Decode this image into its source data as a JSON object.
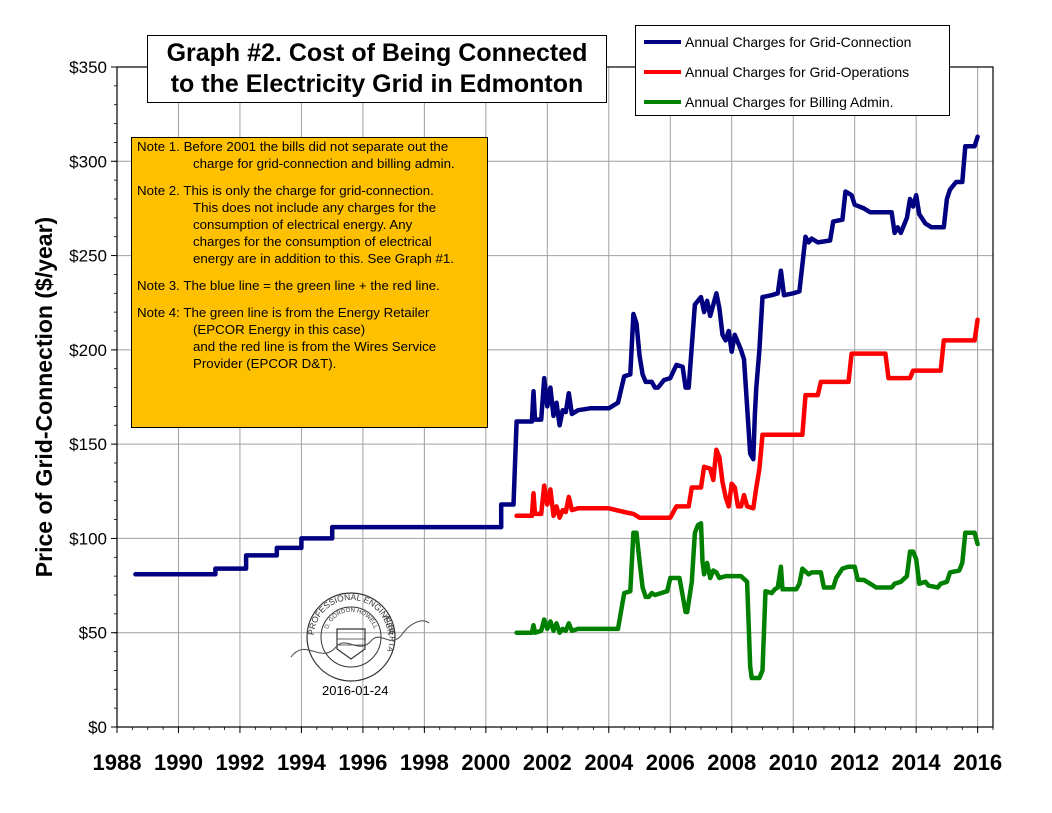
{
  "chart_data": {
    "type": "line",
    "title": [
      "Graph #2. Cost of Being Connected",
      "to the Electricity Grid in Edmonton"
    ],
    "xlabel": "",
    "ylabel": "Price of Grid-Connection ($/year)",
    "xlim": [
      1988,
      2016.5
    ],
    "ylim": [
      0,
      350
    ],
    "x_ticks": [
      1988,
      1990,
      1992,
      1994,
      1996,
      1998,
      2000,
      2002,
      2004,
      2006,
      2008,
      2010,
      2012,
      2014,
      2016
    ],
    "y_ticks": [
      0,
      50,
      100,
      150,
      200,
      250,
      300,
      350
    ],
    "y_tick_labels": [
      "$0",
      "$50",
      "$100",
      "$150",
      "$200",
      "$250",
      "$300",
      "$350"
    ],
    "grid": true,
    "legend_position": "top-right",
    "series": [
      {
        "name": "Annual Charges for Grid-Connection",
        "color": "#000080",
        "points": [
          [
            1988.6,
            81
          ],
          [
            1991.2,
            81
          ],
          [
            1991.2,
            84
          ],
          [
            1992.2,
            84
          ],
          [
            1992.2,
            91
          ],
          [
            1993.2,
            91
          ],
          [
            1993.2,
            95
          ],
          [
            1994.0,
            95
          ],
          [
            1994.0,
            100
          ],
          [
            1995.0,
            100
          ],
          [
            1995.0,
            106
          ],
          [
            2000.5,
            106
          ],
          [
            2000.5,
            118
          ],
          [
            2000.9,
            118
          ],
          [
            2001.0,
            162
          ],
          [
            2001.5,
            162
          ],
          [
            2001.55,
            178
          ],
          [
            2001.6,
            163
          ],
          [
            2001.8,
            163
          ],
          [
            2001.9,
            185
          ],
          [
            2002.0,
            170
          ],
          [
            2002.1,
            180
          ],
          [
            2002.2,
            165
          ],
          [
            2002.3,
            172
          ],
          [
            2002.4,
            160
          ],
          [
            2002.5,
            168
          ],
          [
            2002.6,
            167
          ],
          [
            2002.7,
            177
          ],
          [
            2002.8,
            166
          ],
          [
            2003.0,
            168
          ],
          [
            2003.4,
            169
          ],
          [
            2004.0,
            169
          ],
          [
            2004.3,
            172
          ],
          [
            2004.5,
            186
          ],
          [
            2004.7,
            187
          ],
          [
            2004.8,
            219
          ],
          [
            2004.9,
            214
          ],
          [
            2005.0,
            197
          ],
          [
            2005.1,
            187
          ],
          [
            2005.2,
            183
          ],
          [
            2005.4,
            183
          ],
          [
            2005.5,
            180
          ],
          [
            2005.6,
            180
          ],
          [
            2005.8,
            184
          ],
          [
            2006.0,
            185
          ],
          [
            2006.2,
            192
          ],
          [
            2006.4,
            191
          ],
          [
            2006.5,
            180
          ],
          [
            2006.6,
            180
          ],
          [
            2006.8,
            224
          ],
          [
            2007.0,
            228
          ],
          [
            2007.1,
            220
          ],
          [
            2007.2,
            226
          ],
          [
            2007.3,
            218
          ],
          [
            2007.5,
            230
          ],
          [
            2007.6,
            222
          ],
          [
            2007.7,
            208
          ],
          [
            2007.8,
            205
          ],
          [
            2007.9,
            210
          ],
          [
            2008.0,
            199
          ],
          [
            2008.1,
            208
          ],
          [
            2008.3,
            200
          ],
          [
            2008.4,
            195
          ],
          [
            2008.5,
            170
          ],
          [
            2008.6,
            145
          ],
          [
            2008.7,
            142
          ],
          [
            2008.75,
            165
          ],
          [
            2008.8,
            180
          ],
          [
            2008.9,
            200
          ],
          [
            2009.0,
            228
          ],
          [
            2009.3,
            229
          ],
          [
            2009.5,
            230
          ],
          [
            2009.6,
            242
          ],
          [
            2009.7,
            229
          ],
          [
            2010.0,
            230
          ],
          [
            2010.2,
            231
          ],
          [
            2010.4,
            260
          ],
          [
            2010.5,
            257
          ],
          [
            2010.6,
            259
          ],
          [
            2010.8,
            257
          ],
          [
            2011.2,
            258
          ],
          [
            2011.3,
            268
          ],
          [
            2011.6,
            269
          ],
          [
            2011.7,
            284
          ],
          [
            2011.9,
            282
          ],
          [
            2012.0,
            277
          ],
          [
            2012.3,
            275
          ],
          [
            2012.5,
            273
          ],
          [
            2013.2,
            273
          ],
          [
            2013.3,
            262
          ],
          [
            2013.4,
            265
          ],
          [
            2013.5,
            262
          ],
          [
            2013.7,
            270
          ],
          [
            2013.8,
            280
          ],
          [
            2013.9,
            276
          ],
          [
            2014.0,
            282
          ],
          [
            2014.1,
            272
          ],
          [
            2014.3,
            267
          ],
          [
            2014.5,
            265
          ],
          [
            2014.9,
            265
          ],
          [
            2015.0,
            280
          ],
          [
            2015.1,
            285
          ],
          [
            2015.3,
            289
          ],
          [
            2015.5,
            289
          ],
          [
            2015.6,
            308
          ],
          [
            2015.9,
            308
          ],
          [
            2016.0,
            313
          ]
        ]
      },
      {
        "name": "Annual Charges for Grid-Operations",
        "color": "#ff0000",
        "points": [
          [
            2001.0,
            112
          ],
          [
            2001.5,
            112
          ],
          [
            2001.55,
            124
          ],
          [
            2001.6,
            113
          ],
          [
            2001.8,
            113
          ],
          [
            2001.9,
            128
          ],
          [
            2002.0,
            118
          ],
          [
            2002.1,
            126
          ],
          [
            2002.2,
            112
          ],
          [
            2002.3,
            117
          ],
          [
            2002.4,
            111
          ],
          [
            2002.5,
            115
          ],
          [
            2002.6,
            114
          ],
          [
            2002.7,
            122
          ],
          [
            2002.8,
            115
          ],
          [
            2003.0,
            116
          ],
          [
            2004.0,
            116
          ],
          [
            2004.5,
            114
          ],
          [
            2004.8,
            113
          ],
          [
            2005.0,
            111
          ],
          [
            2006.0,
            111
          ],
          [
            2006.2,
            117
          ],
          [
            2006.6,
            117
          ],
          [
            2006.7,
            127
          ],
          [
            2007.0,
            127
          ],
          [
            2007.1,
            138
          ],
          [
            2007.3,
            137
          ],
          [
            2007.4,
            131
          ],
          [
            2007.5,
            147
          ],
          [
            2007.6,
            143
          ],
          [
            2007.7,
            130
          ],
          [
            2007.8,
            122
          ],
          [
            2007.9,
            117
          ],
          [
            2008.0,
            129
          ],
          [
            2008.1,
            127
          ],
          [
            2008.2,
            117
          ],
          [
            2008.3,
            117
          ],
          [
            2008.4,
            123
          ],
          [
            2008.5,
            117
          ],
          [
            2008.7,
            116
          ],
          [
            2008.8,
            127
          ],
          [
            2008.9,
            137
          ],
          [
            2009.0,
            155
          ],
          [
            2010.3,
            155
          ],
          [
            2010.4,
            176
          ],
          [
            2010.8,
            176
          ],
          [
            2010.9,
            183
          ],
          [
            2011.8,
            183
          ],
          [
            2011.9,
            198
          ],
          [
            2013.0,
            198
          ],
          [
            2013.1,
            185
          ],
          [
            2013.8,
            185
          ],
          [
            2013.9,
            189
          ],
          [
            2014.8,
            189
          ],
          [
            2014.9,
            205
          ],
          [
            2015.9,
            205
          ],
          [
            2016.0,
            216
          ]
        ]
      },
      {
        "name": "Annual Charges for Billing Admin.",
        "color": "#008000",
        "points": [
          [
            2001.0,
            50
          ],
          [
            2001.5,
            50
          ],
          [
            2001.55,
            54
          ],
          [
            2001.6,
            50
          ],
          [
            2001.8,
            51
          ],
          [
            2001.9,
            57
          ],
          [
            2002.0,
            52
          ],
          [
            2002.1,
            56
          ],
          [
            2002.2,
            51
          ],
          [
            2002.3,
            55
          ],
          [
            2002.4,
            50
          ],
          [
            2002.5,
            52
          ],
          [
            2002.6,
            51
          ],
          [
            2002.7,
            55
          ],
          [
            2002.8,
            51
          ],
          [
            2003.0,
            52
          ],
          [
            2004.3,
            52
          ],
          [
            2004.5,
            71
          ],
          [
            2004.7,
            72
          ],
          [
            2004.8,
            103
          ],
          [
            2004.9,
            103
          ],
          [
            2005.0,
            88
          ],
          [
            2005.1,
            74
          ],
          [
            2005.2,
            69
          ],
          [
            2005.3,
            69
          ],
          [
            2005.4,
            71
          ],
          [
            2005.5,
            70
          ],
          [
            2005.7,
            71
          ],
          [
            2005.9,
            72
          ],
          [
            2006.0,
            79
          ],
          [
            2006.3,
            79
          ],
          [
            2006.5,
            61
          ],
          [
            2006.55,
            61
          ],
          [
            2006.7,
            77
          ],
          [
            2006.8,
            103
          ],
          [
            2006.9,
            107
          ],
          [
            2007.0,
            108
          ],
          [
            2007.05,
            88
          ],
          [
            2007.1,
            81
          ],
          [
            2007.2,
            87
          ],
          [
            2007.3,
            79
          ],
          [
            2007.4,
            83
          ],
          [
            2007.5,
            82
          ],
          [
            2007.6,
            79
          ],
          [
            2007.8,
            80
          ],
          [
            2008.0,
            80
          ],
          [
            2008.3,
            80
          ],
          [
            2008.5,
            77
          ],
          [
            2008.6,
            32
          ],
          [
            2008.65,
            26
          ],
          [
            2008.9,
            26
          ],
          [
            2009.0,
            30
          ],
          [
            2009.1,
            72
          ],
          [
            2009.3,
            71
          ],
          [
            2009.4,
            73
          ],
          [
            2009.5,
            74
          ],
          [
            2009.6,
            85
          ],
          [
            2009.65,
            73
          ],
          [
            2009.8,
            73
          ],
          [
            2010.1,
            73
          ],
          [
            2010.2,
            76
          ],
          [
            2010.3,
            84
          ],
          [
            2010.5,
            81
          ],
          [
            2010.6,
            82
          ],
          [
            2010.9,
            82
          ],
          [
            2011.0,
            74
          ],
          [
            2011.3,
            74
          ],
          [
            2011.4,
            79
          ],
          [
            2011.6,
            84
          ],
          [
            2011.8,
            85
          ],
          [
            2012.0,
            85
          ],
          [
            2012.1,
            78
          ],
          [
            2012.3,
            78
          ],
          [
            2012.5,
            76
          ],
          [
            2012.7,
            74
          ],
          [
            2013.2,
            74
          ],
          [
            2013.3,
            76
          ],
          [
            2013.5,
            77
          ],
          [
            2013.7,
            80
          ],
          [
            2013.8,
            93
          ],
          [
            2013.9,
            93
          ],
          [
            2014.0,
            89
          ],
          [
            2014.1,
            76
          ],
          [
            2014.3,
            77
          ],
          [
            2014.4,
            75
          ],
          [
            2014.7,
            74
          ],
          [
            2014.8,
            76
          ],
          [
            2015.0,
            77
          ],
          [
            2015.1,
            82
          ],
          [
            2015.4,
            83
          ],
          [
            2015.5,
            87
          ],
          [
            2015.6,
            103
          ],
          [
            2015.9,
            103
          ],
          [
            2016.0,
            97
          ]
        ]
      }
    ]
  },
  "notes": [
    [
      "Note 1. Before 2001 the bills did not separate out the",
      "charge for grid-connection and billing admin."
    ],
    [
      "Note 2. This is only the charge for grid-connection.",
      "This does not include any charges for the",
      "consumption of electrical energy.  Any",
      "charges for the consumption of electrical",
      "energy are in addition to this.  See Graph #1."
    ],
    [
      "Note 3. The blue line = the green line + the red line."
    ],
    [
      "Note 4: The green line is from the Energy Retailer",
      "(EPCOR Energy in this case)",
      "and the red line is from the Wires Service",
      "Provider (EPCOR D&T)."
    ]
  ],
  "stamp": {
    "date": "2016-01-24",
    "seal_text": [
      "PROFESSIONAL ENGINEER",
      "D. GORDON HOWELL",
      "ALBERTA"
    ],
    "signature": "Gordon Howell"
  }
}
